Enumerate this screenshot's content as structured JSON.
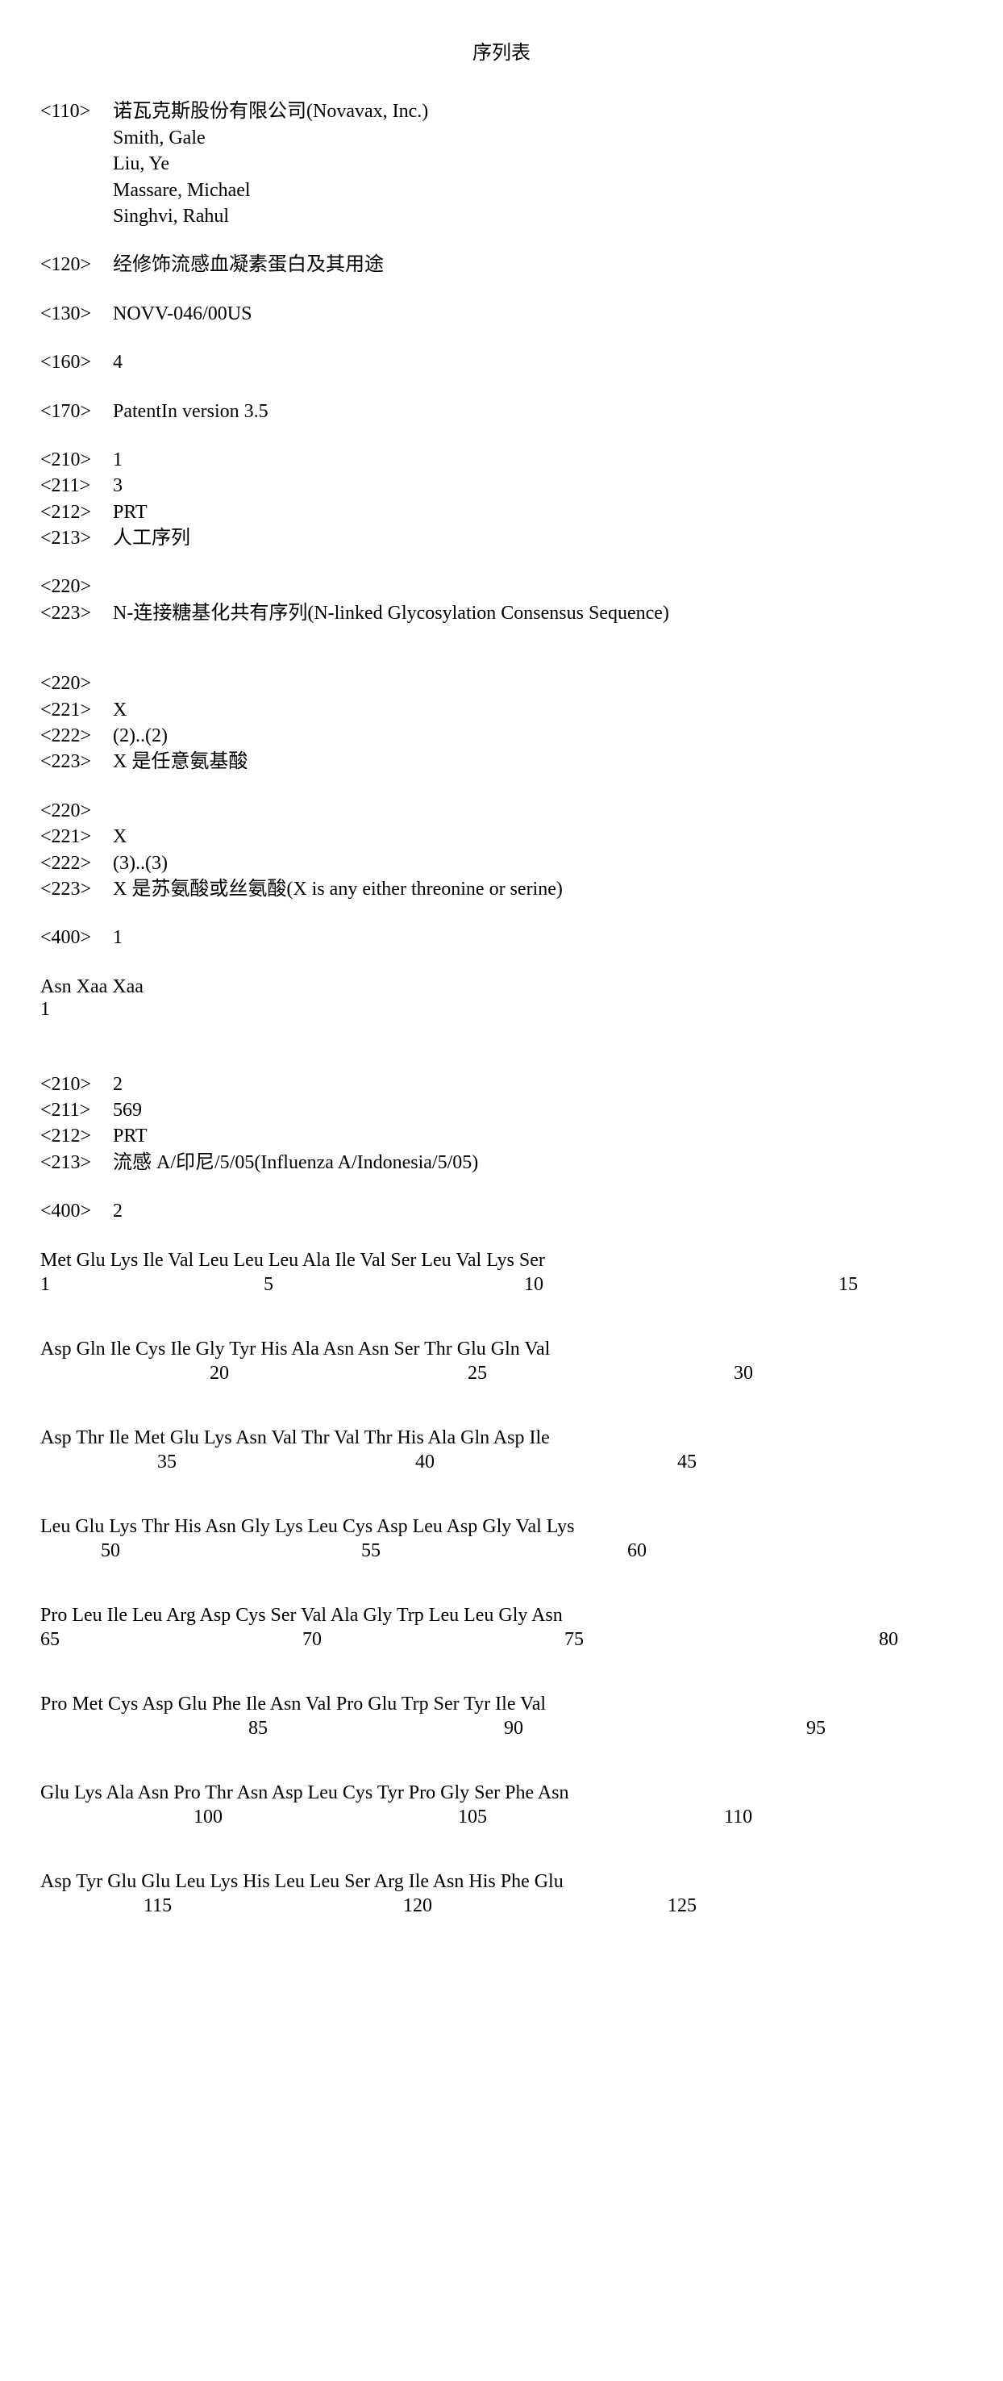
{
  "title": "序列表",
  "header": [
    {
      "tag": "<110>",
      "values": [
        "诺瓦克斯股份有限公司(Novavax, Inc.)",
        "Smith, Gale",
        "Liu, Ye",
        "Massare, Michael",
        "Singhvi, Rahul"
      ]
    },
    {
      "tag": "<120>",
      "values": [
        "经修饰流感血凝素蛋白及其用途"
      ]
    },
    {
      "tag": "<130>",
      "values": [
        "NOVV-046/00US"
      ]
    },
    {
      "tag": "<160>",
      "values": [
        "4"
      ]
    },
    {
      "tag": "<170>",
      "values": [
        "PatentIn version 3.5"
      ]
    }
  ],
  "seq1_meta": [
    {
      "tag": "<210>",
      "values": [
        "1"
      ]
    },
    {
      "tag": "<211>",
      "values": [
        "3"
      ]
    },
    {
      "tag": "<212>",
      "values": [
        "PRT"
      ]
    },
    {
      "tag": "<213>",
      "values": [
        "人工序列"
      ]
    }
  ],
  "seq1_feat1": [
    {
      "tag": "<220>",
      "values": [
        ""
      ]
    },
    {
      "tag": "<223>",
      "values": [
        "N-连接糖基化共有序列(N-linked Glycosylation Consensus Sequence)"
      ]
    }
  ],
  "seq1_feat2": [
    {
      "tag": "<220>",
      "values": [
        ""
      ]
    },
    {
      "tag": "<221>",
      "values": [
        "X"
      ]
    },
    {
      "tag": "<222>",
      "values": [
        "(2)..(2)"
      ]
    },
    {
      "tag": "<223>",
      "values": [
        "X 是任意氨基酸"
      ]
    }
  ],
  "seq1_feat3": [
    {
      "tag": "<220>",
      "values": [
        ""
      ]
    },
    {
      "tag": "<221>",
      "values": [
        "X"
      ]
    },
    {
      "tag": "<222>",
      "values": [
        "(3)..(3)"
      ]
    },
    {
      "tag": "<223>",
      "values": [
        "X 是苏氨酸或丝氨酸(X is any either threonine or serine)"
      ]
    }
  ],
  "seq1_400": [
    {
      "tag": "<400>",
      "values": [
        "1"
      ]
    }
  ],
  "seq1_seq": "Asn Xaa Xaa",
  "seq1_num": "1",
  "seq2_meta": [
    {
      "tag": "<210>",
      "values": [
        "2"
      ]
    },
    {
      "tag": "<211>",
      "values": [
        "569"
      ]
    },
    {
      "tag": "<212>",
      "values": [
        "PRT"
      ]
    },
    {
      "tag": "<213>",
      "values": [
        "流感 A/印尼/5/05(Influenza A/Indonesia/5/05)"
      ]
    }
  ],
  "seq2_400": [
    {
      "tag": "<400>",
      "values": [
        "2"
      ]
    }
  ],
  "seq2_rows": [
    {
      "aa": "Met Glu Lys Ile Val Leu Leu Leu Ala Ile Val Ser Leu Val Lys Ser",
      "nums": [
        {
          "pos": 0,
          "n": "1"
        },
        {
          "pos": 277,
          "n": "5"
        },
        {
          "pos": 600,
          "n": "10"
        },
        {
          "pos": 990,
          "n": "15"
        }
      ]
    },
    {
      "aa": "Asp Gln Ile Cys Ile Gly Tyr His Ala Asn Asn Ser Thr Glu Gln Val",
      "nums": [
        {
          "pos": 210,
          "n": "20"
        },
        {
          "pos": 530,
          "n": "25"
        },
        {
          "pos": 860,
          "n": "30"
        }
      ]
    },
    {
      "aa": "Asp Thr Ile Met Glu Lys Asn Val Thr Val Thr His Ala Gln Asp Ile",
      "nums": [
        {
          "pos": 145,
          "n": "35"
        },
        {
          "pos": 465,
          "n": "40"
        },
        {
          "pos": 790,
          "n": "45"
        }
      ]
    },
    {
      "aa": "Leu Glu Lys Thr His Asn Gly Lys Leu Cys Asp Leu Asp Gly Val Lys",
      "nums": [
        {
          "pos": 75,
          "n": "50"
        },
        {
          "pos": 398,
          "n": "55"
        },
        {
          "pos": 728,
          "n": "60"
        }
      ]
    },
    {
      "aa": "Pro Leu Ile Leu Arg Asp Cys Ser Val Ala Gly Trp Leu Leu Gly Asn",
      "nums": [
        {
          "pos": 0,
          "n": "65"
        },
        {
          "pos": 325,
          "n": "70"
        },
        {
          "pos": 650,
          "n": "75"
        },
        {
          "pos": 1040,
          "n": "80"
        }
      ]
    },
    {
      "aa": "Pro Met Cys Asp Glu Phe Ile Asn Val Pro Glu Trp Ser Tyr Ile Val",
      "nums": [
        {
          "pos": 258,
          "n": "85"
        },
        {
          "pos": 575,
          "n": "90"
        },
        {
          "pos": 950,
          "n": "95"
        }
      ]
    },
    {
      "aa": "Glu Lys Ala Asn Pro Thr Asn Asp Leu Cys Tyr Pro Gly Ser Phe Asn",
      "nums": [
        {
          "pos": 190,
          "n": "100"
        },
        {
          "pos": 518,
          "n": "105"
        },
        {
          "pos": 848,
          "n": "110"
        }
      ]
    },
    {
      "aa": "Asp Tyr Glu Glu Leu Lys His Leu Leu Ser Arg Ile Asn His Phe Glu",
      "nums": [
        {
          "pos": 128,
          "n": "115"
        },
        {
          "pos": 450,
          "n": "120"
        },
        {
          "pos": 778,
          "n": "125"
        }
      ]
    }
  ]
}
